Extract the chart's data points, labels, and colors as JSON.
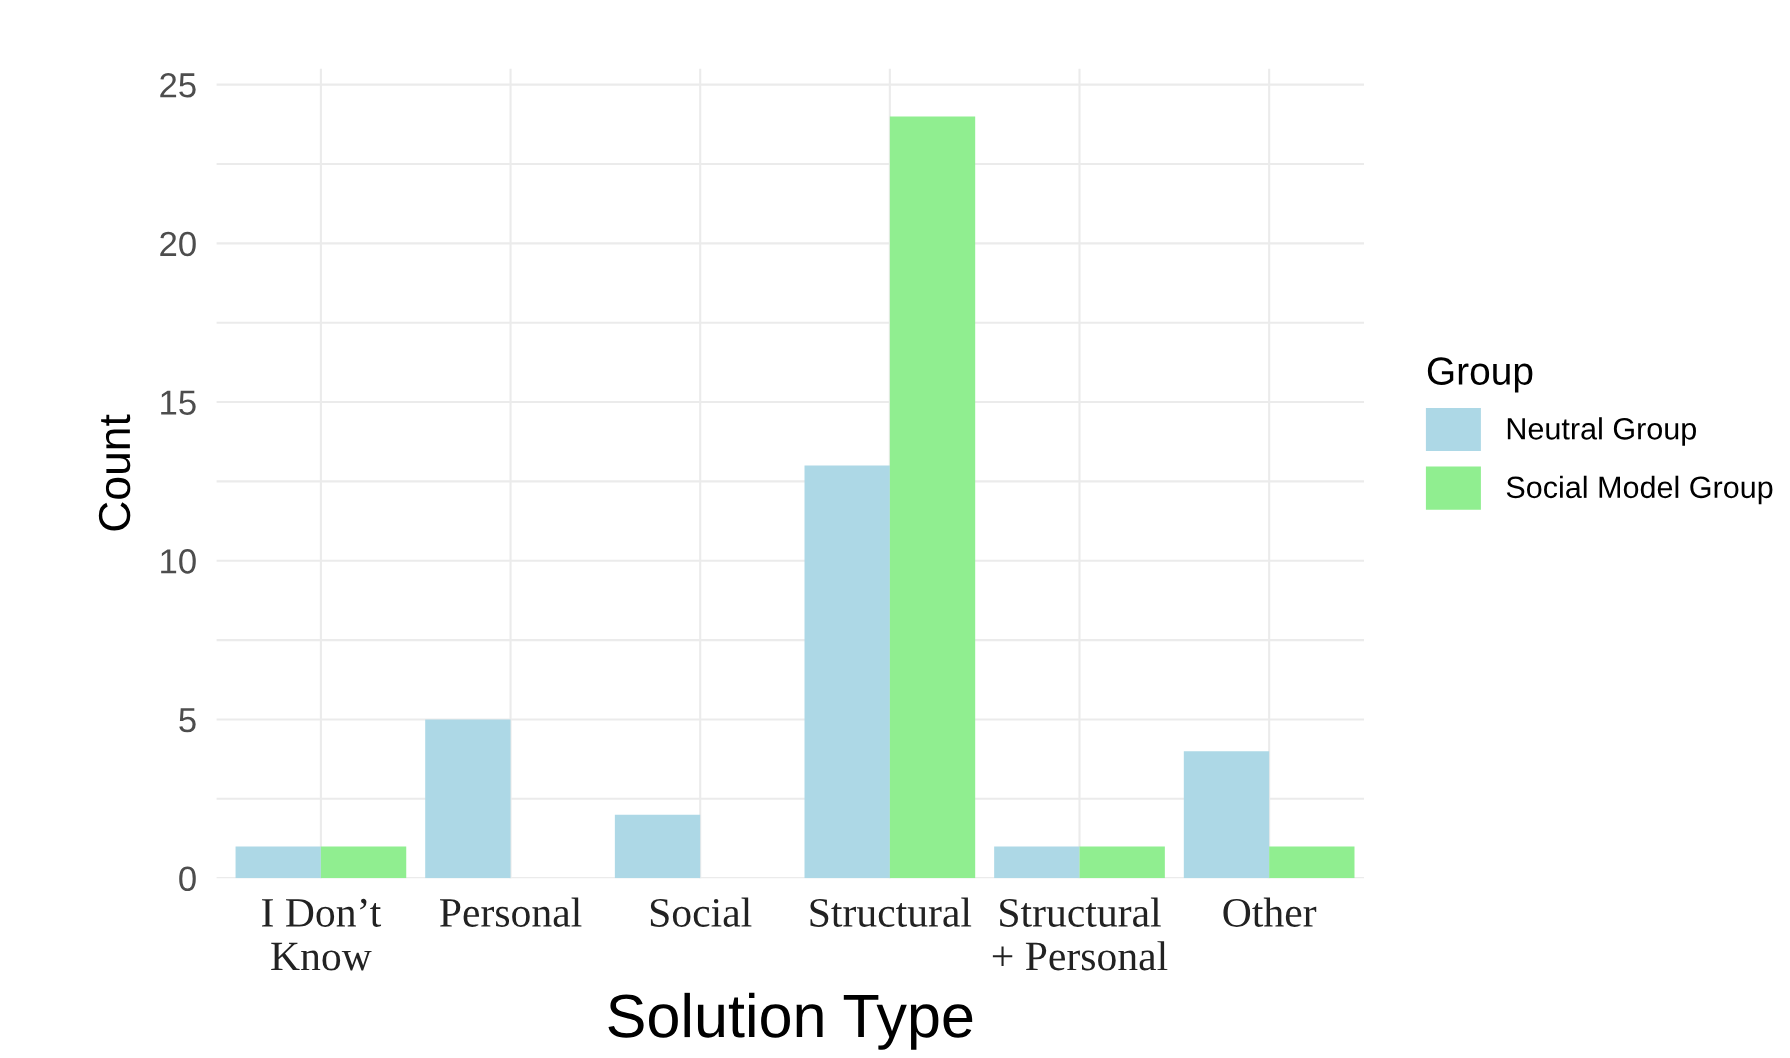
{
  "chart_data": {
    "type": "bar",
    "xlabel": "Solution Type",
    "ylabel": "Count",
    "legend_title": "Group",
    "categories": [
      "I Don’t\nKnow",
      "Personal",
      "Social",
      "Structural",
      "Structural\n+ Personal",
      "Other"
    ],
    "series": [
      {
        "name": "Neutral Group",
        "color": "#add8e6",
        "values": [
          1,
          5,
          2,
          13,
          1,
          4
        ]
      },
      {
        "name": "Social Model Group",
        "color": "#90ee90",
        "values": [
          1,
          0,
          0,
          24,
          1,
          1
        ]
      }
    ],
    "ylim": [
      0,
      25.5
    ],
    "yticks": [
      0,
      {
        "value": 2.5,
        "label": null
      },
      5,
      {
        "value": 7.5,
        "label": null
      },
      10,
      {
        "value": 12.5,
        "label": null
      },
      15,
      {
        "value": 17.5,
        "label": null
      },
      20,
      {
        "value": 22.5,
        "label": null
      },
      25
    ],
    "grid": true,
    "legend": "right"
  }
}
